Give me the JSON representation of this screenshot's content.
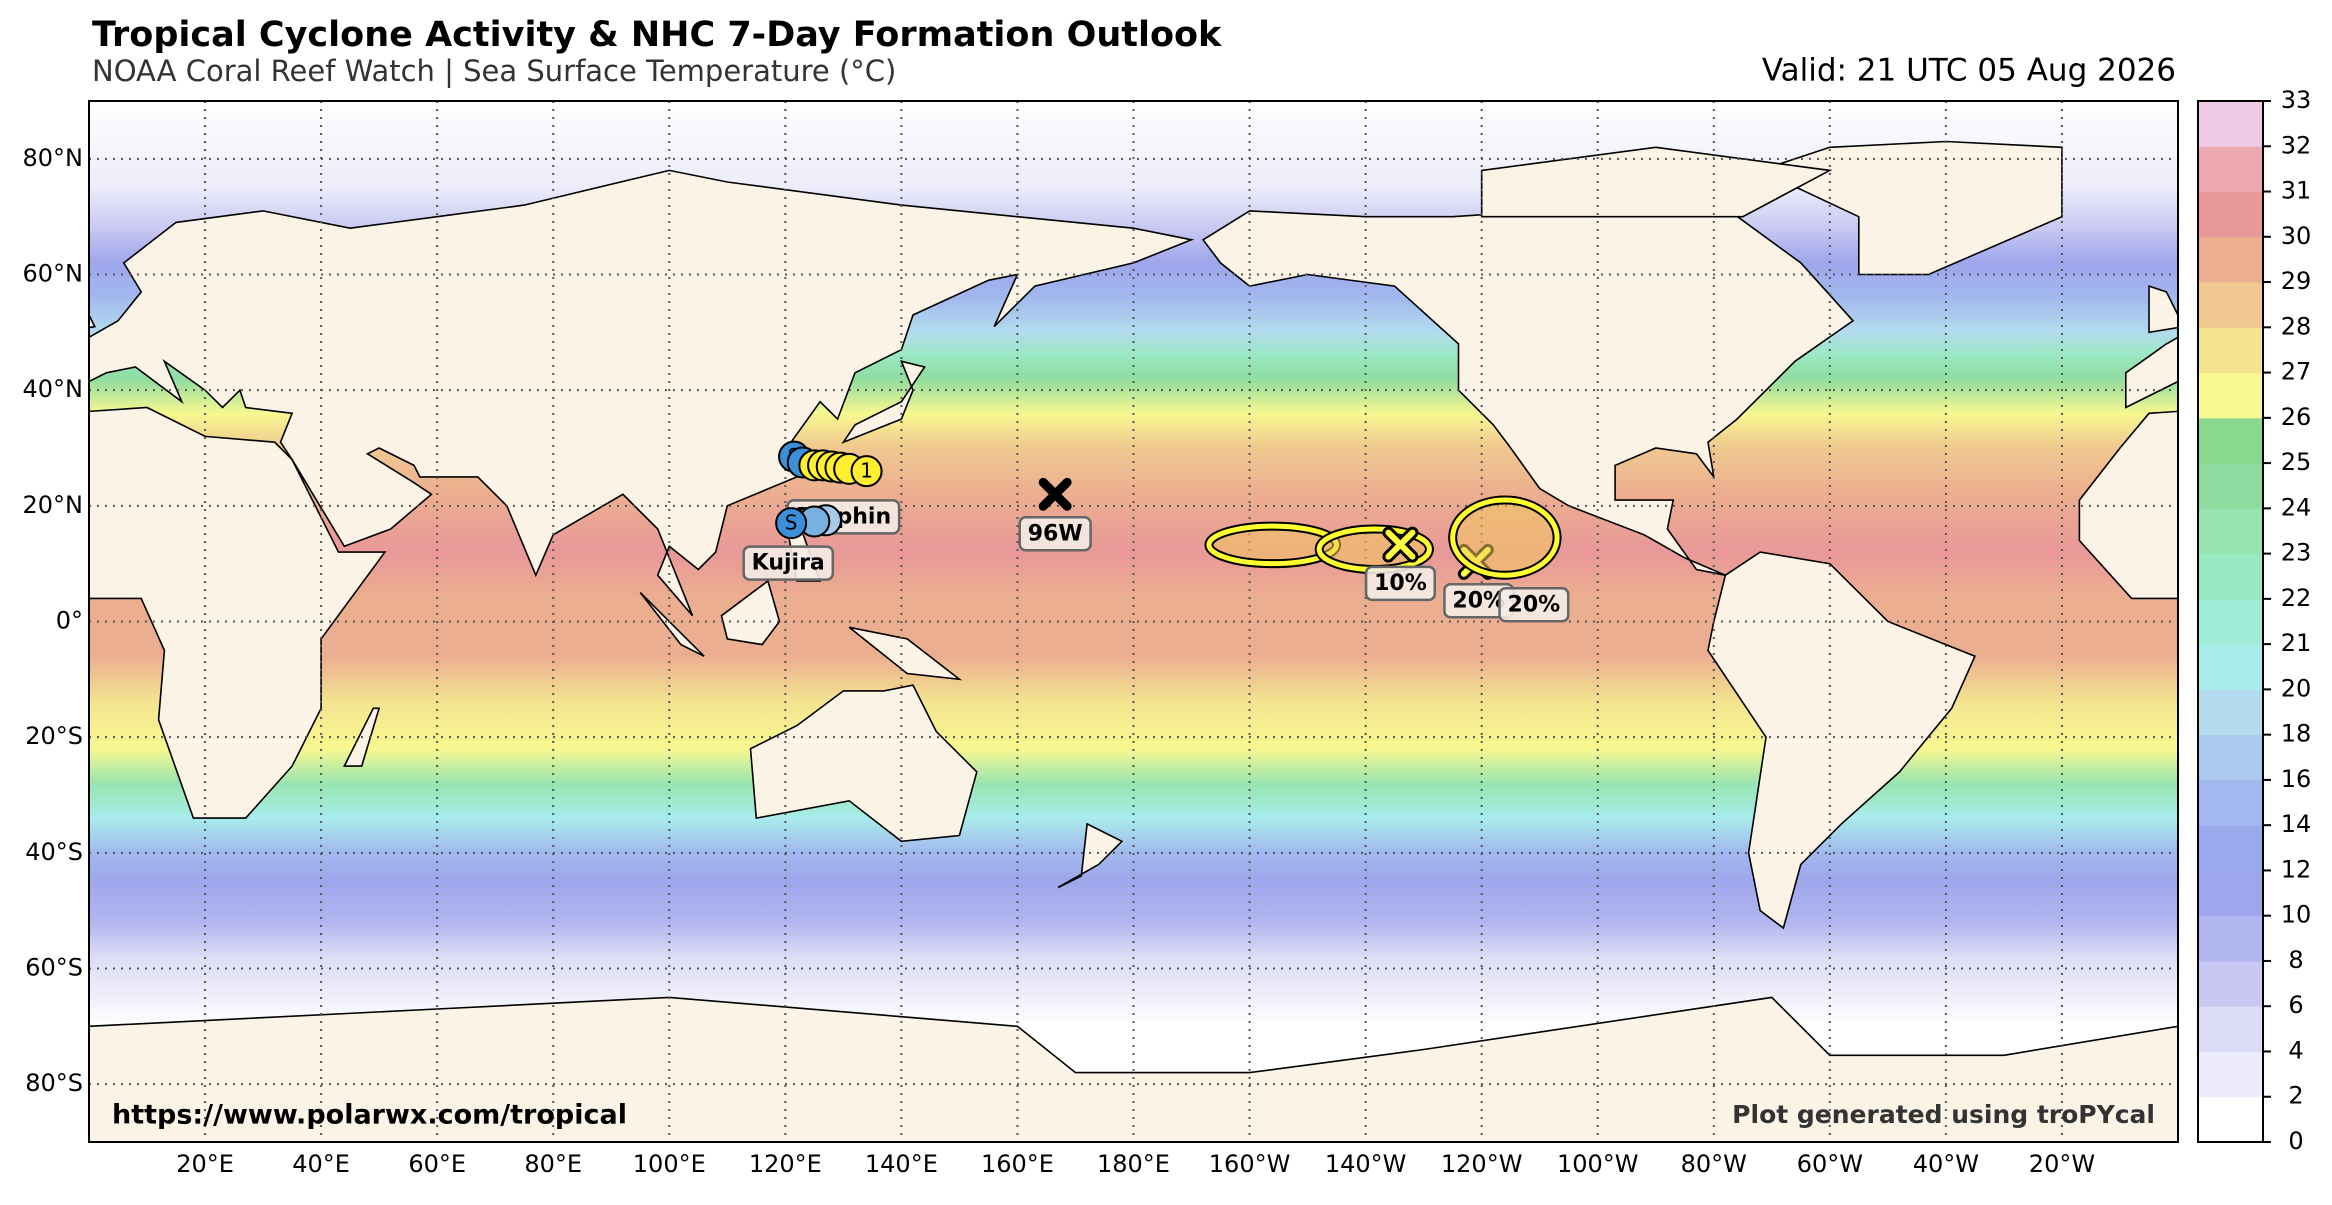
{
  "header": {
    "title": "Tropical Cyclone Activity & NHC 7-Day Formation Outlook",
    "subtitle": "NOAA Coral Reef Watch | Sea Surface Temperature (°C)",
    "valid": "Valid: 21 UTC 05 Aug 2026"
  },
  "map": {
    "lat_ticks": [
      {
        "value": 80,
        "label": "80°N"
      },
      {
        "value": 60,
        "label": "60°N"
      },
      {
        "value": 40,
        "label": "40°N"
      },
      {
        "value": 20,
        "label": "20°N"
      },
      {
        "value": 0,
        "label": "0°"
      },
      {
        "value": -20,
        "label": "20°S"
      },
      {
        "value": -40,
        "label": "40°S"
      },
      {
        "value": -60,
        "label": "60°S"
      },
      {
        "value": -80,
        "label": "80°S"
      }
    ],
    "lon_ticks": [
      {
        "value": 20,
        "label": "20°E"
      },
      {
        "value": 40,
        "label": "40°E"
      },
      {
        "value": 60,
        "label": "60°E"
      },
      {
        "value": 80,
        "label": "80°E"
      },
      {
        "value": 100,
        "label": "100°E"
      },
      {
        "value": 120,
        "label": "120°E"
      },
      {
        "value": 140,
        "label": "140°E"
      },
      {
        "value": 160,
        "label": "160°E"
      },
      {
        "value": 180,
        "label": "180°E"
      },
      {
        "value": -160,
        "label": "160°W"
      },
      {
        "value": -140,
        "label": "140°W"
      },
      {
        "value": -120,
        "label": "120°W"
      },
      {
        "value": -100,
        "label": "100°W"
      },
      {
        "value": -80,
        "label": "80°W"
      },
      {
        "value": -60,
        "label": "60°W"
      },
      {
        "value": -40,
        "label": "40°W"
      },
      {
        "value": -20,
        "label": "20°W"
      }
    ],
    "storms": [
      {
        "name": "Dolphin",
        "label_lon": 130,
        "label_lat": 18,
        "track": [
          {
            "lon": 121.5,
            "lat": 28.5,
            "color": "#3a8fd8",
            "label": "S"
          },
          {
            "lon": 123,
            "lat": 27.5,
            "color": "#3a8fd8"
          },
          {
            "lon": 125,
            "lat": 27,
            "color": "#ffef30"
          },
          {
            "lon": 126.5,
            "lat": 27,
            "color": "#ffef30"
          },
          {
            "lon": 128,
            "lat": 26.8,
            "color": "#ffef30"
          },
          {
            "lon": 129.5,
            "lat": 26.6,
            "color": "#ffef30"
          },
          {
            "lon": 131,
            "lat": 26.4,
            "color": "#ffef30"
          },
          {
            "lon": 134,
            "lat": 26,
            "color": "#ffef30",
            "label": "1"
          }
        ]
      },
      {
        "name": "Kujira",
        "label_lon": 120.5,
        "label_lat": 10,
        "track": [
          {
            "lon": 127,
            "lat": 17.5,
            "color": "#a8c8e8"
          },
          {
            "lon": 125,
            "lat": 17.3,
            "color": "#78b0e0"
          },
          {
            "lon": 121,
            "lat": 17,
            "color": "#3a8fd8",
            "label": "S"
          }
        ]
      }
    ],
    "invests": [
      {
        "name": "96W",
        "lon": 166.5,
        "lat": 22
      }
    ],
    "outlooks": [
      {
        "label": "10%",
        "lon": -134,
        "lat": 13.3,
        "label_lon": -134,
        "label_lat": 6.5,
        "areas": [
          {
            "lon": [
              -167,
              -145
            ],
            "lat": [
              10,
              16.5
            ]
          },
          {
            "lon": [
              -148,
              -129
            ],
            "lat": [
              9,
              16
            ]
          }
        ]
      },
      {
        "label": "20%",
        "lon": -121,
        "lat": 10.3,
        "label_lon": -120.5,
        "label_lat": 3.5,
        "areas": []
      },
      {
        "label": "20%",
        "label_lon": -111,
        "label_lat": 2.8,
        "areas": [
          {
            "lon": [
              -125,
              -107
            ],
            "lat": [
              8,
              21
            ]
          }
        ]
      }
    ]
  },
  "colorbar": {
    "ticks": [
      0,
      2,
      4,
      6,
      8,
      10,
      12,
      14,
      16,
      18,
      20,
      21,
      22,
      23,
      24,
      25,
      26,
      27,
      28,
      29,
      30,
      31,
      32,
      33
    ],
    "colors": [
      "#ffffff",
      "#ececfa",
      "#dcdcf6",
      "#c8c8f2",
      "#b2b6f0",
      "#9ea6ec",
      "#98aaec",
      "#a2b8ee",
      "#abc8ee",
      "#b2dcee",
      "#a8ecec",
      "#a0ecd8",
      "#9ae8c2",
      "#98e4b0",
      "#90dca0",
      "#88d890",
      "#f8f890",
      "#f4e490",
      "#f0c890",
      "#ecae90",
      "#e89898",
      "#eca8b0",
      "#f0c8e8"
    ]
  },
  "footer": {
    "url": "https://www.polarwx.com/tropical",
    "credit": "Plot generated using troPYcal"
  }
}
